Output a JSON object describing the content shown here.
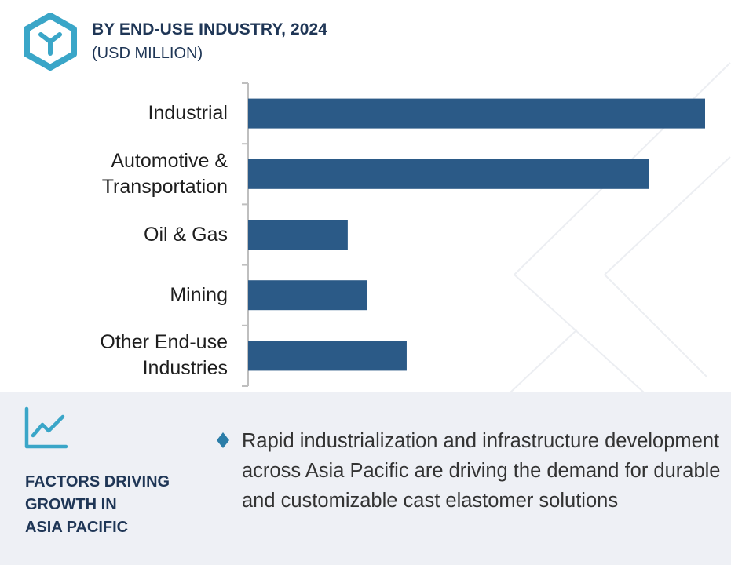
{
  "header": {
    "title": "BY END-USE INDUSTRY, 2024",
    "subtitle": "(USD MILLION)"
  },
  "colors": {
    "bar": "#2b5a87",
    "accent": "#3aa6c8",
    "title": "#1f3656"
  },
  "icons": {
    "logo": "hexagon-logo-icon",
    "trend": "trend-line-icon",
    "bullet": "diamond-bullet-icon"
  },
  "chart_data": {
    "type": "bar",
    "orientation": "horizontal",
    "title": "BY END-USE INDUSTRY, 2024",
    "subtitle": "(USD MILLION)",
    "categories": [
      "Industrial",
      "Automotive & Transportation",
      "Oil & Gas",
      "Mining",
      "Other End-use Industries"
    ],
    "category_labels": [
      "Industrial",
      "Automotive &\nTransportation",
      "Oil & Gas",
      "Mining",
      "Other End-use\nIndustries"
    ],
    "values": [
      100,
      87.7,
      21.8,
      26.1,
      34.7
    ],
    "xlim": [
      0,
      100
    ],
    "grid": false,
    "legend": "none",
    "value_labels": false
  },
  "factors": {
    "heading": "FACTORS DRIVING\nGROWTH IN\nASIA PACIFIC",
    "bullet_text": "Rapid industrialization and infrastructure development across Asia Pacific are driving the demand for durable and customizable cast elastomer solutions"
  }
}
